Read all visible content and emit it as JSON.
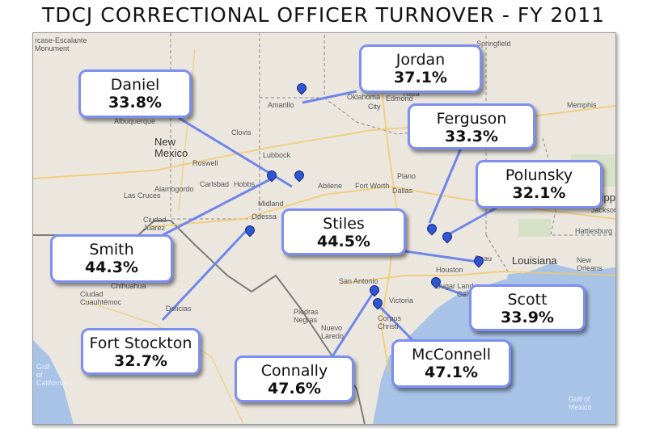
{
  "title": "TDCJ CORRECTIONAL OFFICER TURNOVER - FY 2011",
  "units": [
    {
      "name": "Daniel",
      "rate": "33.8%"
    },
    {
      "name": "Jordan",
      "rate": "37.1%"
    },
    {
      "name": "Ferguson",
      "rate": "33.3%"
    },
    {
      "name": "Polunsky",
      "rate": "32.1%"
    },
    {
      "name": "Stiles",
      "rate": "44.5%"
    },
    {
      "name": "Smith",
      "rate": "44.3%"
    },
    {
      "name": "Scott",
      "rate": "33.9%"
    },
    {
      "name": "Fort Stockton",
      "rate": "32.7%"
    },
    {
      "name": "McConnell",
      "rate": "47.1%"
    },
    {
      "name": "Connally",
      "rate": "47.6%"
    }
  ],
  "map_labels": {
    "escalante": "rcase-Escalante",
    "monument": "Monument",
    "springfield": "Springfield",
    "amarillo": "Amarillo",
    "oklahoma": "Oklahoma",
    "oklahoma_city": "City",
    "edmond": "Edmond",
    "tulsa": "Tulsa",
    "memphis": "Memphis",
    "albuquerque": "Albuquerque",
    "new_mexico": "New\nMexico",
    "clovis": "Clovis",
    "lubbock": "Lubbock",
    "roswell": "Roswell",
    "alamogordo": "Alamogordo",
    "carlsbad": "Carlsbad",
    "hobbs": "Hobbs",
    "las_cruces": "Las Cruces",
    "midland": "Midland",
    "odessa": "Odessa",
    "abilene": "Abilene",
    "fort_worth": "Fort Worth",
    "dallas": "Dallas",
    "plano": "Plano",
    "ciudad_juarez": "Ciudad\nJuarez",
    "mississippi": "Mississippi",
    "jackson": "Jackson",
    "hattiesburg": "Hattiesburg",
    "louisiana": "Louisiana",
    "new_orleans": "New\nOrleans",
    "houston": "Houston",
    "san_antonio": "San Antonio",
    "victoria": "Victoria",
    "corpus": "Corpus\nChristi",
    "chihuahua": "Chihuahua",
    "delicias": "Delicias",
    "cuauhtemoc": "Ciudad\nCuauhtémoc",
    "piedras_negras": "Piedras\nNegras",
    "nuevo_laredo": "Nuevo\nLaredo",
    "gulf_california": "Gulf\nof\nCalifornia",
    "gulf_mexico": "Gulf of\nMexico",
    "sugar_land": "Sugar Land",
    "galveston": "Galveston",
    "beaumont": "Beau"
  }
}
